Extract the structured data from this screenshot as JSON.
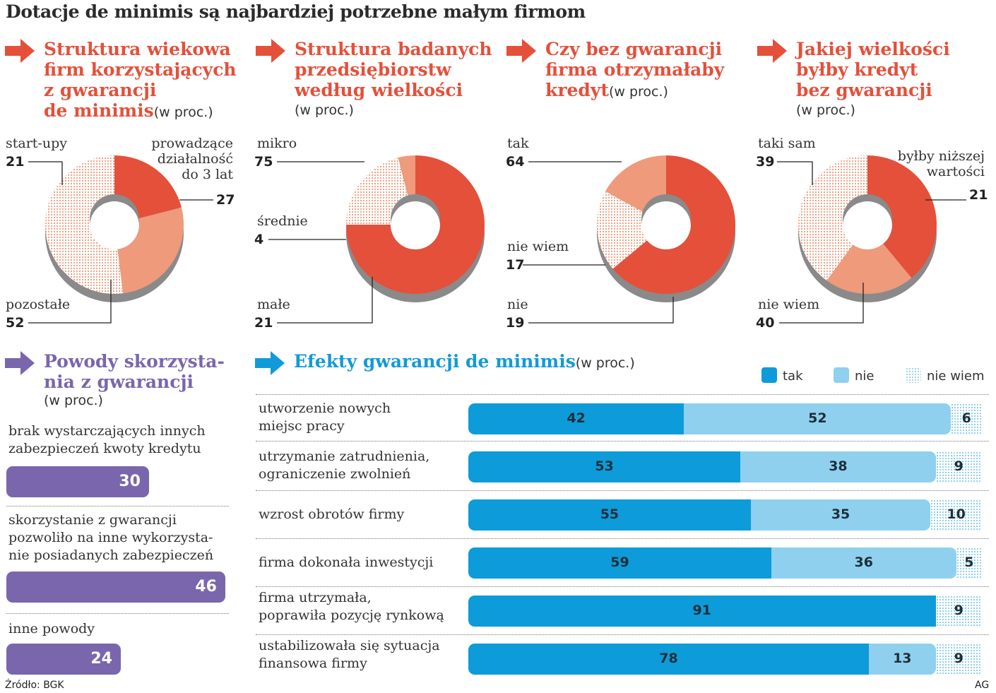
{
  "title": "Dotacje de minimis są najbardziej potrzebne małym firmom",
  "unit": "(w proc.)",
  "colors": {
    "red": "#e4503a",
    "salmon": "#ee9a7b",
    "dots": "#f6c3b2",
    "purple": "#7a66ad",
    "blue": "#0d9bd9",
    "lightblue": "#8fd0ef"
  },
  "pies": [
    {
      "title_lines": [
        "Struktura wiekowa",
        "firm korzystających",
        "z gwarancji",
        "de minimis"
      ],
      "labels": [
        {
          "text": [
            "start-upy"
          ],
          "value": "21"
        },
        {
          "text": [
            "prowadzące",
            "działalność",
            "do 3 lat"
          ],
          "value": "27"
        },
        {
          "text": [
            "pozostałe"
          ],
          "value": "52"
        }
      ]
    },
    {
      "title_lines": [
        "Struktura badanych",
        "przedsiębiorstw",
        "według wielkości"
      ],
      "labels": [
        {
          "text": [
            "mikro"
          ],
          "value": "75"
        },
        {
          "text": [
            "średnie"
          ],
          "value": "4"
        },
        {
          "text": [
            "małe"
          ],
          "value": "21"
        }
      ]
    },
    {
      "title_lines": [
        "Czy bez gwarancji",
        "firma otrzymałaby",
        "kredyt"
      ],
      "labels": [
        {
          "text": [
            "tak"
          ],
          "value": "64"
        },
        {
          "text": [
            "nie wiem"
          ],
          "value": "17"
        },
        {
          "text": [
            "nie"
          ],
          "value": "19"
        }
      ]
    },
    {
      "title_lines": [
        "Jakiej wielkości",
        "byłby kredyt",
        "bez gwarancji"
      ],
      "labels": [
        {
          "text": [
            "taki sam"
          ],
          "value": "39"
        },
        {
          "text": [
            "byłby niższej",
            "wartości"
          ],
          "value": "21"
        },
        {
          "text": [
            "nie wiem"
          ],
          "value": "40"
        }
      ]
    }
  ],
  "reasons": {
    "title_lines": [
      "Powody skorzysta-",
      "nia z gwarancji"
    ],
    "items": [
      {
        "lines": [
          "brak wystarczających innych",
          "zabezpieczeń kwoty kredytu"
        ],
        "value": "30"
      },
      {
        "lines": [
          "skorzystanie z gwarancji",
          "pozwoliło na inne wykorzysta-",
          "nie posiadanych zabezpieczeń"
        ],
        "value": "46"
      },
      {
        "lines": [
          "inne powody"
        ],
        "value": "24"
      }
    ]
  },
  "effects": {
    "title": "Efekty gwarancji de minimis",
    "legend": {
      "tak": "tak",
      "nie": "nie",
      "niewiem": "nie wiem"
    },
    "rows": [
      {
        "lines": [
          "utworzenie nowych",
          "miejsc pracy"
        ]
      },
      {
        "lines": [
          "utrzymanie zatrudnienia,",
          "ograniczenie zwolnień"
        ]
      },
      {
        "lines": [
          "wzrost obrotów firmy"
        ]
      },
      {
        "lines": [
          "firma dokonała inwestycji"
        ]
      },
      {
        "lines": [
          "firma utrzymała,",
          "poprawiła pozycję rynkową"
        ]
      },
      {
        "lines": [
          "ustabilizowała się sytuacja",
          "finansowa firmy"
        ]
      }
    ]
  },
  "chart_data": [
    {
      "type": "pie",
      "title": "Struktura wiekowa firm korzystających z gwarancji de minimis",
      "unit": "(w proc.)",
      "categories": [
        "start-upy",
        "prowadzące działalność do 3 lat",
        "pozostałe"
      ],
      "values": [
        21,
        27,
        52
      ]
    },
    {
      "type": "pie",
      "title": "Struktura badanych przedsiębiorstw według wielkości",
      "unit": "(w proc.)",
      "categories": [
        "mikro",
        "średnie",
        "małe"
      ],
      "values": [
        75,
        4,
        21
      ]
    },
    {
      "type": "pie",
      "title": "Czy bez gwarancji firma otrzymałaby kredyt",
      "unit": "(w proc.)",
      "categories": [
        "tak",
        "nie wiem",
        "nie"
      ],
      "values": [
        64,
        17,
        19
      ]
    },
    {
      "type": "pie",
      "title": "Jakiej wielkości byłby kredyt bez gwarancji",
      "unit": "(w proc.)",
      "categories": [
        "taki sam",
        "byłby niższej wartości",
        "nie wiem"
      ],
      "values": [
        39,
        21,
        40
      ]
    },
    {
      "type": "bar",
      "title": "Powody skorzystania z gwarancji",
      "unit": "(w proc.)",
      "categories": [
        "brak wystarczających innych zabezpieczeń kwoty kredytu",
        "skorzystanie z gwarancji pozwoliło na inne wykorzystanie posiadanych zabezpieczeń",
        "inne powody"
      ],
      "values": [
        30,
        46,
        24
      ]
    },
    {
      "type": "bar",
      "stacked": true,
      "title": "Efekty gwarancji de minimis",
      "unit": "(w proc.)",
      "categories": [
        "utworzenie nowych miejsc pracy",
        "utrzymanie zatrudnienia, ograniczenie zwolnień",
        "wzrost obrotów firmy",
        "firma dokonała inwestycji",
        "firma utrzymała, poprawiła pozycję rynkową",
        "ustabilizowała się sytuacja finansowa firmy"
      ],
      "series": [
        {
          "name": "tak",
          "values": [
            42,
            53,
            55,
            59,
            91,
            78
          ]
        },
        {
          "name": "nie",
          "values": [
            52,
            38,
            35,
            36,
            0,
            13
          ]
        },
        {
          "name": "nie wiem",
          "values": [
            6,
            9,
            10,
            5,
            9,
            9
          ]
        }
      ]
    }
  ],
  "footer": {
    "source": "Źródło: BGK",
    "credit": "AG"
  }
}
